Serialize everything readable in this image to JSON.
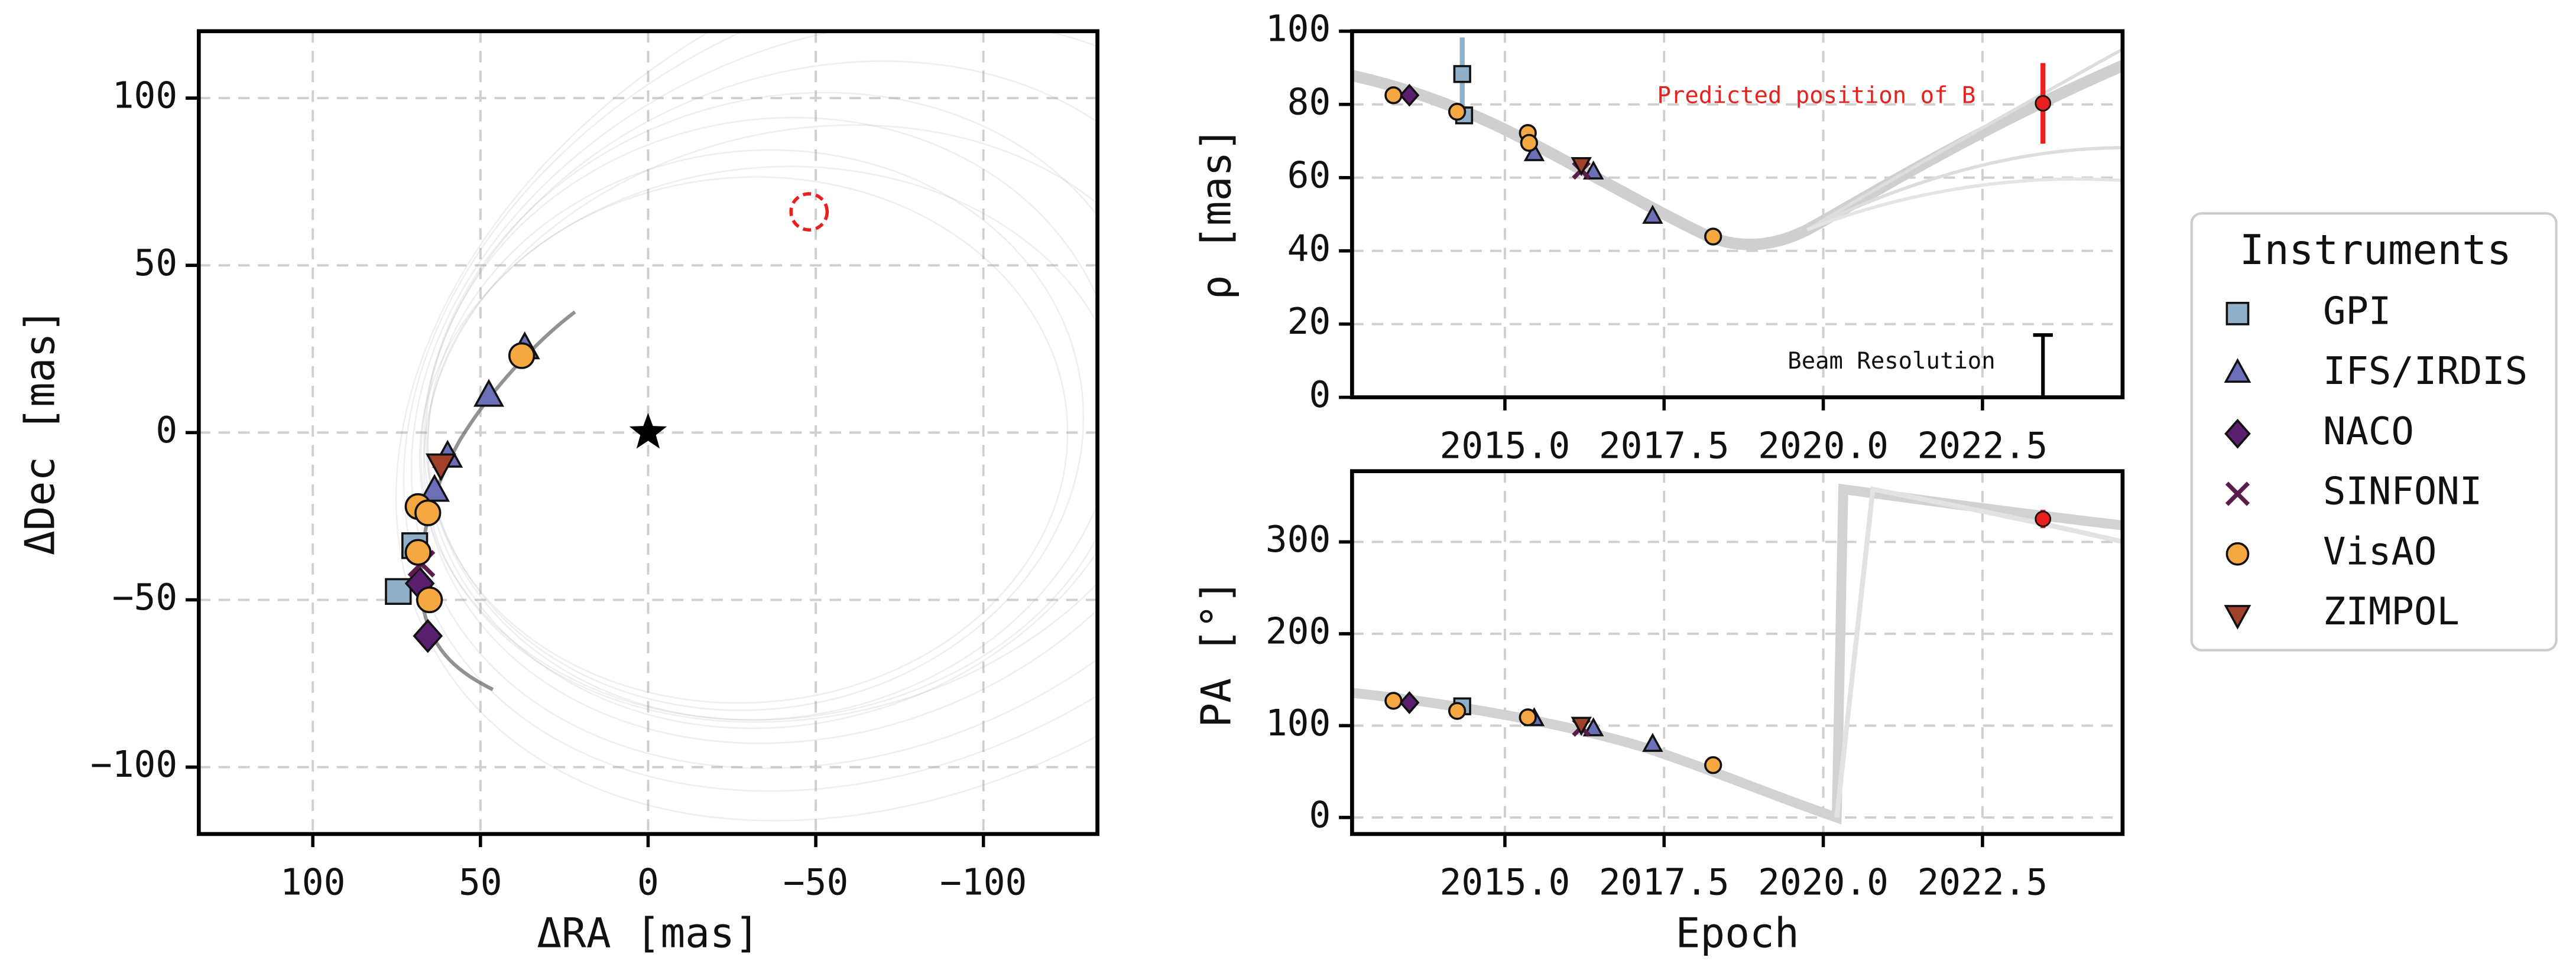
{
  "chart_data": [
    {
      "type": "scatter",
      "xlabel": "ΔRA [mas]",
      "ylabel": "ΔDec [mas]",
      "xlim": [
        134,
        -134
      ],
      "ylim": [
        -120,
        120
      ],
      "xticks": [
        100,
        50,
        0,
        {
          "value": -50,
          "label": "−50"
        },
        {
          "value": -100,
          "label": "−100"
        }
      ],
      "yticks": [
        {
          "value": -100,
          "label": "−100"
        },
        {
          "value": -50,
          "label": "−50"
        },
        0,
        50,
        100
      ],
      "grid": true,
      "series": [
        {
          "x": [
            74.5,
            69.6
          ],
          "y": [
            -47.5,
            -33.8
          ]
        },
        {
          "x": [
            36.8,
            47.5,
            59.8,
            63.7
          ],
          "y": [
            25,
            10.8,
            -7.4,
            -17.6
          ]
        },
        {
          "x": [
            68.1,
            65.7
          ],
          "y": [
            -45.1,
            -60.8
          ]
        },
        {
          "x": [
            67.6
          ],
          "y": [
            -39.2
          ]
        },
        {
          "x": [
            37.7,
            68.6,
            65.7,
            68.6,
            65.2
          ],
          "y": [
            23,
            -22.1,
            -24,
            -35.8,
            -50
          ]
        },
        {
          "x": [
            61.8
          ],
          "y": [
            -9.3
          ]
        }
      ],
      "host_star": {
        "x": 0,
        "y": 0,
        "color": "#000000"
      },
      "predicted_marker": {
        "x": -48,
        "y": 66,
        "color": "#e8201e"
      }
    },
    {
      "type": "scatter",
      "ylabel": "ρ [mas]",
      "xlim": [
        2012.6,
        2024.7
      ],
      "ylim": [
        0,
        100
      ],
      "xticks": [
        {
          "value": 2015,
          "label": "2015.0"
        },
        {
          "value": 2017.5,
          "label": "2017.5"
        },
        {
          "value": 2020,
          "label": "2020.0"
        },
        {
          "value": 2022.5,
          "label": "2022.5"
        }
      ],
      "yticks": [
        0,
        20,
        40,
        60,
        80,
        100
      ],
      "grid": true,
      "series": [
        {
          "x": [
            2014.33,
            2014.36
          ],
          "y": [
            88.3,
            77
          ],
          "y_err": [
            10,
            null
          ]
        },
        {
          "x": [
            2015.46,
            2016.39,
            2017.32
          ],
          "y": [
            66.4,
            61.4,
            49.3
          ]
        },
        {
          "x": [
            2013.5
          ],
          "y": [
            82.5
          ]
        },
        {
          "x": [
            2016.2
          ],
          "y": [
            62
          ]
        },
        {
          "x": [
            2013.25,
            2014.25,
            2015.36,
            2015.38,
            2018.27
          ],
          "y": [
            82.5,
            78,
            72.2,
            69.5,
            43.9
          ]
        },
        {
          "x": [
            2016.2
          ],
          "y": [
            63.7
          ]
        }
      ],
      "predicted": {
        "label": "Predicted position of B",
        "x": 2023.45,
        "y": 80.3,
        "err": 11,
        "color": "#e8201e"
      },
      "beam": {
        "label": "Beam Resolution",
        "x": 2023.45,
        "value": 17
      }
    },
    {
      "type": "scatter",
      "xlabel": "Epoch",
      "ylabel": "PA [°]",
      "xlim": [
        2012.6,
        2024.7
      ],
      "ylim": [
        -18,
        377
      ],
      "xticks": [
        {
          "value": 2015,
          "label": "2015.0"
        },
        {
          "value": 2017.5,
          "label": "2017.5"
        },
        {
          "value": 2020,
          "label": "2020.0"
        },
        {
          "value": 2022.5,
          "label": "2022.5"
        }
      ],
      "yticks": [
        0,
        100,
        200,
        300
      ],
      "grid": true,
      "series": [
        {
          "x": [
            2014.33
          ],
          "y": [
            121
          ]
        },
        {
          "x": [
            2015.46,
            2016.39,
            2017.32
          ],
          "y": [
            107,
            96,
            79
          ]
        },
        {
          "x": [
            2013.5
          ],
          "y": [
            125
          ]
        },
        {
          "x": [
            2016.2
          ],
          "y": [
            98
          ]
        },
        {
          "x": [
            2013.25,
            2014.25,
            2015.36,
            2018.27
          ],
          "y": [
            127,
            116,
            109,
            57
          ]
        },
        {
          "x": [
            2016.2
          ],
          "y": [
            102
          ]
        }
      ],
      "predicted": {
        "x": 2023.45,
        "y": 325,
        "err": 10,
        "color": "#e8201e"
      }
    }
  ],
  "legend": {
    "title": "Instruments",
    "entries": [
      {
        "name": "GPI",
        "color": "#8fb0c8",
        "marker": "s"
      },
      {
        "name": "IFS/IRDIS",
        "color": "#6a6fb8",
        "marker": "^"
      },
      {
        "name": "NACO",
        "color": "#5a1e6e",
        "marker": "D"
      },
      {
        "name": "SINFONI",
        "color": "#5a1e4a",
        "marker": "x"
      },
      {
        "name": "VisAO",
        "color": "#f5a742",
        "marker": "o"
      },
      {
        "name": "ZIMPOL",
        "color": "#a0422a",
        "marker": "v"
      }
    ]
  }
}
